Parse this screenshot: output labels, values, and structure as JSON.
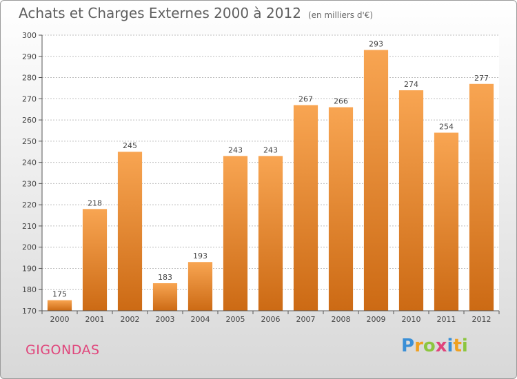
{
  "header": {
    "title": "Achats et Charges Externes 2000 à 2012",
    "subtitle": "(en milliers d'€)"
  },
  "footer": {
    "commune": "GIGONDAS",
    "logo_letters": [
      {
        "char": "P",
        "color": "#3a8fd6"
      },
      {
        "char": "r",
        "color": "#f0a020"
      },
      {
        "char": "o",
        "color": "#8cc63f"
      },
      {
        "char": "x",
        "color": "#e0457b"
      },
      {
        "char": "i",
        "color": "#3a8fd6"
      },
      {
        "char": "t",
        "color": "#f0a020"
      },
      {
        "char": "i",
        "color": "#8cc63f"
      }
    ]
  },
  "chart_data": {
    "type": "bar",
    "categories": [
      "2000",
      "2001",
      "2002",
      "2003",
      "2004",
      "2005",
      "2006",
      "2007",
      "2008",
      "2009",
      "2010",
      "2011",
      "2012"
    ],
    "values": [
      175,
      218,
      245,
      183,
      193,
      243,
      243,
      267,
      266,
      293,
      274,
      254,
      277
    ],
    "title": "Achats et Charges Externes 2000 à 2012",
    "xlabel": "",
    "ylabel": "",
    "ylim": [
      170,
      300
    ],
    "yticks": [
      170,
      180,
      190,
      200,
      210,
      220,
      230,
      240,
      250,
      260,
      270,
      280,
      290,
      300
    ],
    "grid": true,
    "bar_color_top": "#f8a552",
    "bar_color_bottom": "#cc6a14",
    "data_labels": true
  }
}
